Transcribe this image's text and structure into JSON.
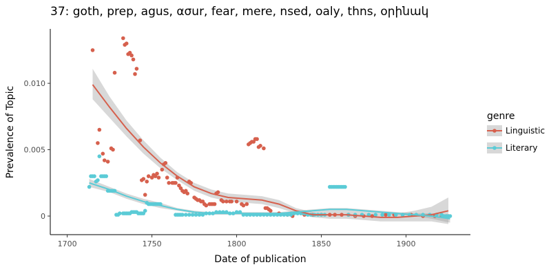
{
  "chart_data": {
    "type": "scatter",
    "title": "37: goth, prep, agus, ασur, fear, mere, nsed, oaly, thns, օրինակ",
    "xlabel": "Date of publication",
    "ylabel": "Prevalence of Topic",
    "xlim": [
      1690,
      1938
    ],
    "ylim": [
      -0.0014,
      0.0141
    ],
    "x_ticks": [
      1700,
      1750,
      1800,
      1850,
      1900
    ],
    "x_tick_labels": [
      "1700",
      "1750",
      "1800",
      "1850",
      "1900"
    ],
    "y_ticks": [
      0,
      0.005,
      0.01
    ],
    "y_tick_labels": [
      "0",
      "0.005",
      "0.010"
    ],
    "grid": false,
    "legend": {
      "title": "genre",
      "position": "right"
    },
    "series": [
      {
        "name": "Linguistic",
        "color": "#d6604d",
        "points": [
          [
            1715,
            0.0125
          ],
          [
            1718,
            0.0055
          ],
          [
            1719,
            0.0065
          ],
          [
            1721,
            0.0047
          ],
          [
            1722,
            0.0042
          ],
          [
            1724,
            0.0041
          ],
          [
            1726,
            0.0051
          ],
          [
            1727,
            0.005
          ],
          [
            1728,
            0.0108
          ],
          [
            1733,
            0.0134
          ],
          [
            1734,
            0.0129
          ],
          [
            1735,
            0.013
          ],
          [
            1736,
            0.0122
          ],
          [
            1737,
            0.0123
          ],
          [
            1738,
            0.0121
          ],
          [
            1739,
            0.0118
          ],
          [
            1740,
            0.0107
          ],
          [
            1741,
            0.0111
          ],
          [
            1743,
            0.0057
          ],
          [
            1744,
            0.0027
          ],
          [
            1745,
            0.0028
          ],
          [
            1746,
            0.0016
          ],
          [
            1747,
            0.0026
          ],
          [
            1748,
            0.003
          ],
          [
            1750,
            0.0029
          ],
          [
            1751,
            0.0031
          ],
          [
            1752,
            0.003
          ],
          [
            1753,
            0.0032
          ],
          [
            1754,
            0.0029
          ],
          [
            1756,
            0.0035
          ],
          [
            1757,
            0.0039
          ],
          [
            1758,
            0.004
          ],
          [
            1759,
            0.0029
          ],
          [
            1760,
            0.0025
          ],
          [
            1762,
            0.0025
          ],
          [
            1763,
            0.0025
          ],
          [
            1764,
            0.0025
          ],
          [
            1765,
            0.0029
          ],
          [
            1766,
            0.0023
          ],
          [
            1767,
            0.0021
          ],
          [
            1768,
            0.0019
          ],
          [
            1769,
            0.0018
          ],
          [
            1770,
            0.0019
          ],
          [
            1771,
            0.0017
          ],
          [
            1772,
            0.0026
          ],
          [
            1773,
            0.0025
          ],
          [
            1775,
            0.0014
          ],
          [
            1776,
            0.0013
          ],
          [
            1777,
            0.0012
          ],
          [
            1778,
            0.0012
          ],
          [
            1779,
            0.0011
          ],
          [
            1780,
            0.0011
          ],
          [
            1781,
            0.0009
          ],
          [
            1782,
            0.0008
          ],
          [
            1784,
            0.0009
          ],
          [
            1785,
            0.0009
          ],
          [
            1786,
            0.0009
          ],
          [
            1787,
            0.0009
          ],
          [
            1788,
            0.0017
          ],
          [
            1789,
            0.0018
          ],
          [
            1791,
            0.0012
          ],
          [
            1792,
            0.0011
          ],
          [
            1794,
            0.0011
          ],
          [
            1796,
            0.0011
          ],
          [
            1797,
            0.0011
          ],
          [
            1800,
            0.0011
          ],
          [
            1803,
            0.0009
          ],
          [
            1804,
            0.0008
          ],
          [
            1806,
            0.0009
          ],
          [
            1807,
            0.0054
          ],
          [
            1808,
            0.0055
          ],
          [
            1809,
            0.0056
          ],
          [
            1810,
            0.0056
          ],
          [
            1811,
            0.0058
          ],
          [
            1812,
            0.0058
          ],
          [
            1813,
            0.0052
          ],
          [
            1814,
            0.0053
          ],
          [
            1816,
            0.0051
          ],
          [
            1817,
            0.0006
          ],
          [
            1818,
            0.0006
          ],
          [
            1819,
            0.0005
          ],
          [
            1820,
            0.0004
          ],
          [
            1825,
            0.0002
          ],
          [
            1830,
            0.0001
          ],
          [
            1833,
            0.0
          ],
          [
            1840,
            0.0001
          ],
          [
            1845,
            0.0001
          ],
          [
            1850,
            0.0001
          ],
          [
            1855,
            0.0001
          ],
          [
            1858,
            0.0001
          ],
          [
            1862,
            0.0001
          ],
          [
            1866,
            0.0001
          ],
          [
            1870,
            0.0
          ],
          [
            1875,
            0.0
          ],
          [
            1880,
            0.0
          ],
          [
            1888,
            0.0001
          ],
          [
            1893,
            0.0001
          ],
          [
            1898,
            0.0001
          ],
          [
            1903,
            0.0001
          ],
          [
            1910,
            0.0
          ],
          [
            1917,
            0.0
          ],
          [
            1921,
            0.0
          ],
          [
            1924,
            0.0
          ],
          [
            1925,
            0.0
          ]
        ],
        "smooth": {
          "x": [
            1715,
            1725,
            1735,
            1745,
            1755,
            1765,
            1775,
            1785,
            1795,
            1805,
            1815,
            1825,
            1835,
            1845,
            1855,
            1865,
            1875,
            1885,
            1895,
            1905,
            1915,
            1925
          ],
          "y": [
            0.0099,
            0.0082,
            0.0066,
            0.0052,
            0.004,
            0.003,
            0.0022,
            0.0017,
            0.0014,
            0.0013,
            0.0012,
            0.0009,
            0.0004,
            0.0001,
            0.0001,
            0.0001,
            0.0,
            -0.0001,
            -0.0001,
            0.0,
            0.0001,
            0.0004
          ],
          "lo": [
            0.0088,
            0.0074,
            0.006,
            0.0047,
            0.0036,
            0.0027,
            0.0019,
            0.0014,
            0.0011,
            0.001,
            0.0009,
            0.0006,
            0.0002,
            -0.0001,
            -0.0002,
            -0.0002,
            -0.0003,
            -0.0004,
            -0.0004,
            -0.0004,
            -0.0004,
            -0.0006
          ],
          "hi": [
            0.0111,
            0.009,
            0.0072,
            0.0057,
            0.0044,
            0.0033,
            0.0025,
            0.002,
            0.0017,
            0.0016,
            0.0015,
            0.0012,
            0.0006,
            0.0003,
            0.0004,
            0.0004,
            0.0003,
            0.0002,
            0.0002,
            0.0004,
            0.0007,
            0.0014
          ]
        }
      },
      {
        "name": "Literary",
        "color": "#5bcbd6",
        "points": [
          [
            1713,
            0.0022
          ],
          [
            1714,
            0.003
          ],
          [
            1715,
            0.003
          ],
          [
            1716,
            0.003
          ],
          [
            1717,
            0.0026
          ],
          [
            1718,
            0.0027
          ],
          [
            1719,
            0.0045
          ],
          [
            1720,
            0.003
          ],
          [
            1721,
            0.003
          ],
          [
            1722,
            0.003
          ],
          [
            1723,
            0.003
          ],
          [
            1724,
            0.0019
          ],
          [
            1725,
            0.0019
          ],
          [
            1726,
            0.0019
          ],
          [
            1727,
            0.0019
          ],
          [
            1728,
            0.0019
          ],
          [
            1729,
            0.0001
          ],
          [
            1730,
            0.0001
          ],
          [
            1731,
            0.0002
          ],
          [
            1733,
            0.0002
          ],
          [
            1734,
            0.0002
          ],
          [
            1735,
            0.0002
          ],
          [
            1736,
            0.0002
          ],
          [
            1737,
            0.0002
          ],
          [
            1738,
            0.0003
          ],
          [
            1739,
            0.0003
          ],
          [
            1740,
            0.0003
          ],
          [
            1741,
            0.0003
          ],
          [
            1742,
            0.0002
          ],
          [
            1743,
            0.0002
          ],
          [
            1744,
            0.0002
          ],
          [
            1745,
            0.0002
          ],
          [
            1746,
            0.0004
          ],
          [
            1747,
            0.001
          ],
          [
            1748,
            0.0009
          ],
          [
            1749,
            0.0009
          ],
          [
            1750,
            0.0009
          ],
          [
            1751,
            0.0009
          ],
          [
            1752,
            0.0009
          ],
          [
            1753,
            0.0009
          ],
          [
            1754,
            0.0009
          ],
          [
            1755,
            0.0009
          ],
          [
            1764,
            0.0001
          ],
          [
            1765,
            0.0001
          ],
          [
            1766,
            0.0001
          ],
          [
            1767,
            0.0001
          ],
          [
            1768,
            0.0001
          ],
          [
            1770,
            0.0001
          ],
          [
            1772,
            0.0001
          ],
          [
            1774,
            0.0001
          ],
          [
            1776,
            0.0001
          ],
          [
            1778,
            0.0001
          ],
          [
            1780,
            0.0001
          ],
          [
            1782,
            0.0002
          ],
          [
            1784,
            0.0002
          ],
          [
            1786,
            0.0002
          ],
          [
            1788,
            0.0003
          ],
          [
            1790,
            0.0003
          ],
          [
            1792,
            0.0003
          ],
          [
            1794,
            0.0003
          ],
          [
            1796,
            0.0002
          ],
          [
            1798,
            0.0002
          ],
          [
            1800,
            0.0003
          ],
          [
            1802,
            0.0003
          ],
          [
            1804,
            0.0001
          ],
          [
            1806,
            0.0001
          ],
          [
            1808,
            0.0001
          ],
          [
            1810,
            0.0001
          ],
          [
            1812,
            0.0001
          ],
          [
            1814,
            0.0001
          ],
          [
            1816,
            0.0001
          ],
          [
            1818,
            0.0001
          ],
          [
            1820,
            0.0001
          ],
          [
            1822,
            0.0001
          ],
          [
            1824,
            0.0001
          ],
          [
            1826,
            0.0001
          ],
          [
            1828,
            0.0001
          ],
          [
            1830,
            0.0001
          ],
          [
            1832,
            0.0001
          ],
          [
            1834,
            0.0002
          ],
          [
            1836,
            0.0002
          ],
          [
            1838,
            0.0002
          ],
          [
            1840,
            0.0002
          ],
          [
            1842,
            0.0001
          ],
          [
            1844,
            0.0001
          ],
          [
            1846,
            0.0001
          ],
          [
            1848,
            0.0001
          ],
          [
            1850,
            0.0001
          ],
          [
            1852,
            0.0001
          ],
          [
            1855,
            0.0022
          ],
          [
            1856,
            0.0022
          ],
          [
            1857,
            0.0022
          ],
          [
            1858,
            0.0022
          ],
          [
            1859,
            0.0022
          ],
          [
            1860,
            0.0022
          ],
          [
            1861,
            0.0022
          ],
          [
            1862,
            0.0022
          ],
          [
            1863,
            0.0022
          ],
          [
            1864,
            0.0022
          ],
          [
            1866,
            0.0001
          ],
          [
            1870,
            0.0001
          ],
          [
            1874,
            0.0001
          ],
          [
            1878,
            0.0001
          ],
          [
            1882,
            0.0001
          ],
          [
            1886,
            0.0001
          ],
          [
            1890,
            0.0001
          ],
          [
            1894,
            0.0001
          ],
          [
            1898,
            0.0001
          ],
          [
            1902,
            0.0001
          ],
          [
            1906,
            0.0001
          ],
          [
            1910,
            0.0001
          ],
          [
            1914,
            0.0001
          ],
          [
            1918,
            0.0001
          ],
          [
            1921,
            0.0001
          ],
          [
            1922,
            0.0
          ],
          [
            1923,
            0.0
          ],
          [
            1924,
            0.0
          ],
          [
            1925,
            0.0
          ],
          [
            1926,
            0.0
          ]
        ],
        "smooth": {
          "x": [
            1713,
            1725,
            1735,
            1745,
            1755,
            1765,
            1775,
            1785,
            1795,
            1805,
            1815,
            1825,
            1835,
            1845,
            1855,
            1865,
            1875,
            1885,
            1895,
            1905,
            1915,
            1926
          ],
          "y": [
            0.0025,
            0.002,
            0.0015,
            0.0011,
            0.0008,
            0.0005,
            0.0003,
            0.0002,
            0.0002,
            0.0002,
            0.0002,
            0.0002,
            0.0003,
            0.0004,
            0.0005,
            0.0005,
            0.0004,
            0.0003,
            0.0002,
            0.0001,
            0.0,
            -0.0002
          ],
          "lo": [
            0.0022,
            0.0018,
            0.0013,
            0.0009,
            0.0006,
            0.0004,
            0.0002,
            0.0001,
            0.0001,
            0.0001,
            0.0001,
            0.0001,
            0.0002,
            0.0003,
            0.0004,
            0.0004,
            0.0003,
            0.0002,
            0.0001,
            0.0,
            -0.0002,
            -0.0005
          ],
          "hi": [
            0.0028,
            0.0022,
            0.0017,
            0.0013,
            0.001,
            0.0006,
            0.0004,
            0.0003,
            0.0003,
            0.0003,
            0.0003,
            0.0003,
            0.0004,
            0.0005,
            0.0006,
            0.0006,
            0.0005,
            0.0004,
            0.0003,
            0.0002,
            0.0002,
            0.0001
          ]
        }
      }
    ]
  }
}
